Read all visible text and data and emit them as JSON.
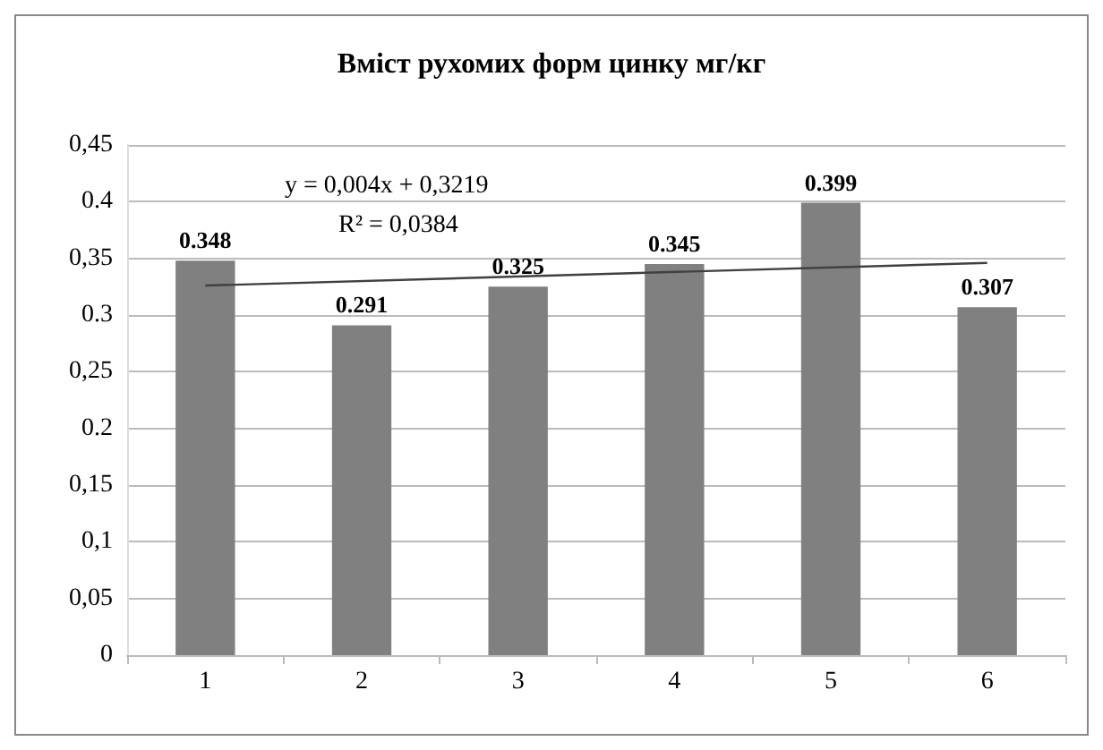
{
  "chart_data": {
    "type": "bar",
    "title": "Вміст рухомих форм цинку мг/кг",
    "categories": [
      "1",
      "2",
      "3",
      "4",
      "5",
      "6"
    ],
    "series": [
      {
        "color": "#808080",
        "values": [
          0.348,
          0.291,
          0.325,
          0.345,
          0.399,
          0.307
        ],
        "value_labels": [
          "0.348",
          "0.291",
          "0.325",
          "0.345",
          "0.399",
          "0.307"
        ]
      },
      {
        "type": "line",
        "color": "#404040",
        "x": [
          "1",
          "6"
        ],
        "values": [
          0.326,
          0.346
        ],
        "marker": "none"
      }
    ],
    "ylim": [
      0,
      0.45
    ],
    "yticks": [
      0,
      {
        "value": 0.05,
        "label": "0,05"
      },
      {
        "value": 0.1,
        "label": "0,1"
      },
      {
        "value": 0.15,
        "label": "0,15"
      },
      0.2,
      {
        "value": 0.25,
        "label": "0,25"
      },
      0.3,
      {
        "value": 0.35,
        "label": "0,35"
      },
      0.4,
      {
        "value": 0.45,
        "label": "0,45"
      }
    ],
    "annotations": [
      "y = 0,004x + 0,3219",
      "R² = 0,0384"
    ],
    "grid": "y"
  }
}
